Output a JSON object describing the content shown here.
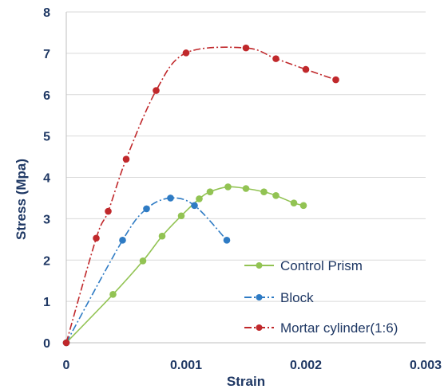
{
  "chart_data": {
    "type": "line",
    "title": "",
    "xlabel": "Strain",
    "ylabel": "Stress (Mpa)",
    "xlim": [
      0,
      0.003
    ],
    "ylim": [
      0,
      8
    ],
    "x_ticks": [
      0,
      0.001,
      0.002,
      0.003
    ],
    "x_tick_labels": [
      "0",
      "0.001",
      "0.002",
      "0.003"
    ],
    "y_ticks": [
      0,
      1,
      2,
      3,
      4,
      5,
      6,
      7,
      8
    ],
    "y_tick_labels": [
      "0",
      "1",
      "2",
      "3",
      "4",
      "5",
      "6",
      "7",
      "8"
    ],
    "grid": "horizontal",
    "legend_position": "bottom-right",
    "series": [
      {
        "name": "Control Prism",
        "color": "#92c353",
        "line_style": "solid",
        "x": [
          0,
          0.00039,
          0.00064,
          0.0008,
          0.00096,
          0.00111,
          0.0012,
          0.00135,
          0.0015,
          0.00165,
          0.00175,
          0.0019,
          0.00198
        ],
        "y": [
          0,
          1.17,
          1.98,
          2.58,
          3.07,
          3.48,
          3.65,
          3.77,
          3.73,
          3.65,
          3.56,
          3.38,
          3.32
        ]
      },
      {
        "name": "Block",
        "color": "#2e7bc4",
        "line_style": "dash-dot",
        "x": [
          0,
          0.00047,
          0.00067,
          0.00087,
          0.00107,
          0.00134
        ],
        "y": [
          0,
          2.48,
          3.24,
          3.5,
          3.32,
          2.48
        ]
      },
      {
        "name": "Mortar cylinder(1:6)",
        "color": "#c0282b",
        "line_style": "dash-dot",
        "x": [
          0,
          0.00025,
          0.00035,
          0.0005,
          0.00075,
          0.001,
          0.0015,
          0.00175,
          0.002,
          0.00225
        ],
        "y": [
          0,
          2.53,
          3.18,
          4.44,
          6.1,
          7.01,
          7.13,
          6.87,
          6.61,
          6.36
        ]
      }
    ]
  }
}
